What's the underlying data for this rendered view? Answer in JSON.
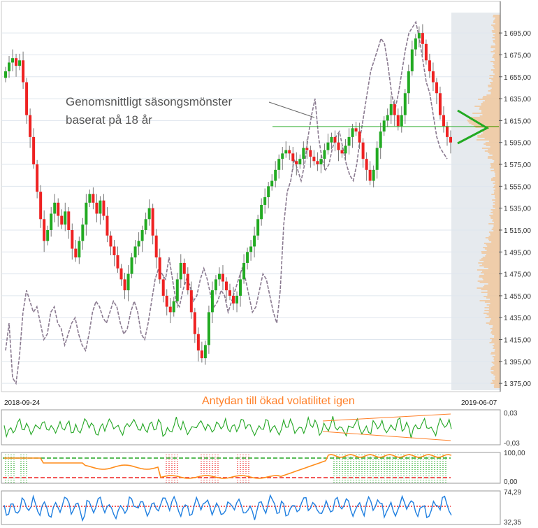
{
  "chart_data": [
    {
      "type": "candlestick",
      "name": "main-price-chart",
      "x_start": "2018-09-24",
      "x_end": "2019-06-07",
      "ylim": [
        1370,
        1720
      ],
      "y_ticks": [
        "1 695,00",
        "1 675,00",
        "1 655,00",
        "1 635,00",
        "1 615,00",
        "1 595,00",
        "1 575,00",
        "1 555,00",
        "1 535,00",
        "1 515,00",
        "1 495,00",
        "1 475,00",
        "1 455,00",
        "1 435,00",
        "1 415,00",
        "1 395,00",
        "1 375,00"
      ],
      "x_labels": [
        "2018-09-24",
        "2019-06-07"
      ],
      "annotation_seasonal": "Genomsnittligt säsongsmönster\nbaserat på 18 år",
      "annotation_volatility": "Antydan till ökad volatilitet igen",
      "reference_level": 1598,
      "colors": {
        "up": "#22aa22",
        "down": "#ee2222",
        "seasonal": "#8a7a90",
        "reference_line": "#22aa22",
        "volume_profile": "#ff9d3a",
        "grid": "#dfe6ee"
      },
      "closes": [
        1660,
        1668,
        1672,
        1665,
        1670,
        1650,
        1620,
        1600,
        1575,
        1550,
        1525,
        1505,
        1515,
        1530,
        1540,
        1528,
        1520,
        1532,
        1515,
        1498,
        1490,
        1505,
        1520,
        1540,
        1548,
        1540,
        1530,
        1542,
        1528,
        1510,
        1500,
        1492,
        1480,
        1470,
        1460,
        1475,
        1490,
        1500,
        1505,
        1515,
        1525,
        1535,
        1510,
        1490,
        1470,
        1455,
        1445,
        1440,
        1450,
        1470,
        1485,
        1475,
        1460,
        1440,
        1420,
        1405,
        1398,
        1410,
        1440,
        1460,
        1470,
        1475,
        1468,
        1460,
        1455,
        1448,
        1455,
        1470,
        1485,
        1495,
        1500,
        1510,
        1525,
        1538,
        1545,
        1555,
        1560,
        1570,
        1580,
        1585,
        1588,
        1585,
        1578,
        1575,
        1580,
        1590,
        1588,
        1582,
        1578,
        1575,
        1580,
        1588,
        1595,
        1600,
        1595,
        1588,
        1585,
        1592,
        1600,
        1608,
        1605,
        1595,
        1580,
        1570,
        1560,
        1570,
        1590,
        1605,
        1615,
        1620,
        1630,
        1620,
        1610,
        1620,
        1640,
        1660,
        1680,
        1690,
        1695,
        1685,
        1670,
        1660,
        1650,
        1640,
        1620,
        1610,
        1600,
        1595
      ],
      "seasonal": [
        1405,
        1430,
        1380,
        1375,
        1400,
        1440,
        1460,
        1450,
        1440,
        1445,
        1430,
        1415,
        1420,
        1440,
        1445,
        1430,
        1425,
        1410,
        1420,
        1430,
        1435,
        1420,
        1410,
        1405,
        1420,
        1440,
        1450,
        1445,
        1435,
        1430,
        1440,
        1450,
        1445,
        1430,
        1420,
        1425,
        1440,
        1450,
        1440,
        1420,
        1415,
        1430,
        1450,
        1470,
        1480,
        1475,
        1470,
        1490,
        1470,
        1450,
        1445,
        1460,
        1470,
        1465,
        1450,
        1455,
        1470,
        1480,
        1470,
        1455,
        1445,
        1450,
        1460,
        1455,
        1440,
        1450,
        1460,
        1470,
        1480,
        1470,
        1455,
        1440,
        1445,
        1460,
        1475,
        1470,
        1455,
        1440,
        1430,
        1460,
        1520,
        1550,
        1560,
        1580,
        1570,
        1560,
        1575,
        1600,
        1620,
        1635,
        1600,
        1580,
        1570,
        1575,
        1590,
        1600,
        1605,
        1590,
        1575,
        1565,
        1560,
        1575,
        1600,
        1620,
        1640,
        1660,
        1670,
        1680,
        1690,
        1685,
        1665,
        1640,
        1625,
        1640,
        1660,
        1680,
        1695,
        1700,
        1705,
        1690,
        1670,
        1650,
        1640,
        1620,
        1600,
        1590,
        1585,
        1580
      ]
    },
    {
      "type": "line",
      "name": "oscillator-panel",
      "y_ticks": [
        "0,03",
        "-0,03"
      ],
      "colors": {
        "line": "#22a622",
        "channel": "#ff7f27"
      }
    },
    {
      "type": "line",
      "name": "stochastic-panel",
      "y_ticks": [
        "100,00",
        "0,00"
      ],
      "colors": {
        "line": "#ff8c1a",
        "upper": "#22a622",
        "lower": "#ee2222",
        "markers_low": "#ee2222",
        "markers_high": "#22a622"
      }
    },
    {
      "type": "line",
      "name": "rsi-panel",
      "y_ticks": [
        "74,29",
        "32,35"
      ],
      "colors": {
        "line": "#1f7fe0",
        "midline": "#ee2222"
      }
    }
  ]
}
